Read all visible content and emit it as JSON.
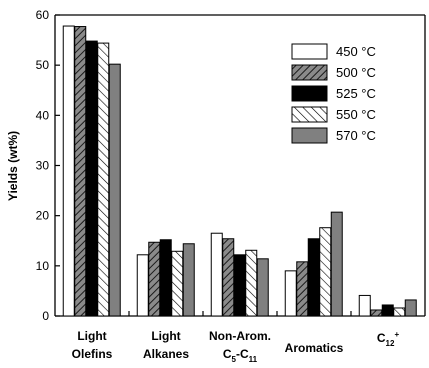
{
  "chart_data": {
    "type": "bar",
    "ylabel": "Yields (wt%)",
    "xlabel": "",
    "ylim": [
      0,
      60
    ],
    "yticks": [
      0,
      10,
      20,
      30,
      40,
      50,
      60
    ],
    "categories": [
      {
        "line1": "Light",
        "line2": "Olefins"
      },
      {
        "line1": "Light",
        "line2": "Alkanes"
      },
      {
        "line1": "Non-Arom.",
        "line2": "C5-C11",
        "line2_parts": [
          "C",
          "5",
          "-C",
          "11"
        ]
      },
      {
        "line1": "Aromatics",
        "line2": ""
      },
      {
        "line1": "C12+",
        "line1_parts": [
          "C",
          "12",
          "+"
        ],
        "line2": ""
      }
    ],
    "series": [
      {
        "name": "450 °C",
        "values": [
          57.8,
          12.2,
          16.5,
          9.0,
          4.1
        ],
        "fill": "#ffffff",
        "pattern": "none"
      },
      {
        "name": "500 °C",
        "values": [
          57.7,
          14.7,
          15.4,
          10.8,
          1.2
        ],
        "fill": "#707070",
        "pattern": "hatch-dense"
      },
      {
        "name": "525 °C",
        "values": [
          54.8,
          15.2,
          12.2,
          15.4,
          2.2
        ],
        "fill": "#000000",
        "pattern": "none"
      },
      {
        "name": "550 °C",
        "values": [
          54.4,
          12.9,
          13.1,
          17.6,
          1.6
        ],
        "fill": "#ffffff",
        "pattern": "hatch-sparse"
      },
      {
        "name": "570 °C",
        "values": [
          50.2,
          14.4,
          11.4,
          20.7,
          3.2
        ],
        "fill": "#808080",
        "pattern": "none"
      }
    ],
    "legend": {
      "placement": "top-right"
    },
    "grid": false
  }
}
